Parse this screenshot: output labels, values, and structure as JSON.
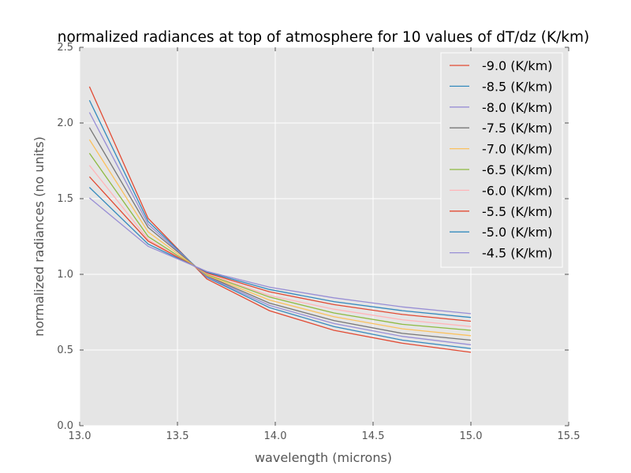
{
  "chart_data": {
    "type": "line",
    "title": "normalized radiances at top of atmosphere for 10 values of dT/dz (K/km)",
    "xlabel": "wavelength (microns)",
    "ylabel": "normalized radiances (no units)",
    "xlim": [
      13.0,
      15.5
    ],
    "ylim": [
      0.0,
      2.5
    ],
    "xticks": [
      "13.0",
      "13.5",
      "14.0",
      "14.5",
      "15.0",
      "15.5"
    ],
    "yticks": [
      "0.0",
      "0.5",
      "1.0",
      "1.5",
      "2.0",
      "2.5"
    ],
    "grid": true,
    "legend_position": "top-right",
    "x": [
      13.05,
      13.35,
      13.65,
      13.97,
      14.3,
      14.65,
      15.0
    ],
    "series": [
      {
        "name": "-9.0 (K/km)",
        "color": "#E24A33",
        "values": [
          2.24,
          1.37,
          0.97,
          0.76,
          0.63,
          0.545,
          0.485
        ]
      },
      {
        "name": "-8.5 (K/km)",
        "color": "#348ABD",
        "values": [
          2.15,
          1.35,
          0.98,
          0.78,
          0.655,
          0.565,
          0.51
        ]
      },
      {
        "name": "-8.0 (K/km)",
        "color": "#988ED5",
        "values": [
          2.07,
          1.33,
          0.985,
          0.795,
          0.675,
          0.59,
          0.535
        ]
      },
      {
        "name": "-7.5 (K/km)",
        "color": "#777777",
        "values": [
          1.97,
          1.31,
          0.99,
          0.81,
          0.695,
          0.61,
          0.565
        ]
      },
      {
        "name": "-7.0 (K/km)",
        "color": "#FBC15E",
        "values": [
          1.89,
          1.28,
          0.995,
          0.83,
          0.72,
          0.64,
          0.595
        ]
      },
      {
        "name": "-6.5 (K/km)",
        "color": "#8EBA42",
        "values": [
          1.8,
          1.25,
          1.0,
          0.85,
          0.745,
          0.67,
          0.63
        ]
      },
      {
        "name": "-6.0 (K/km)",
        "color": "#FFB5B8",
        "values": [
          1.72,
          1.23,
          1.005,
          0.86,
          0.77,
          0.7,
          0.655
        ]
      },
      {
        "name": "-5.5 (K/km)",
        "color": "#E24A33",
        "values": [
          1.645,
          1.22,
          1.01,
          0.885,
          0.8,
          0.735,
          0.69
        ]
      },
      {
        "name": "-5.0 (K/km)",
        "color": "#348ABD",
        "values": [
          1.575,
          1.2,
          1.015,
          0.9,
          0.82,
          0.76,
          0.715
        ]
      },
      {
        "name": "-4.5 (K/km)",
        "color": "#988ED5",
        "values": [
          1.505,
          1.185,
          1.02,
          0.915,
          0.845,
          0.785,
          0.74
        ]
      }
    ]
  }
}
